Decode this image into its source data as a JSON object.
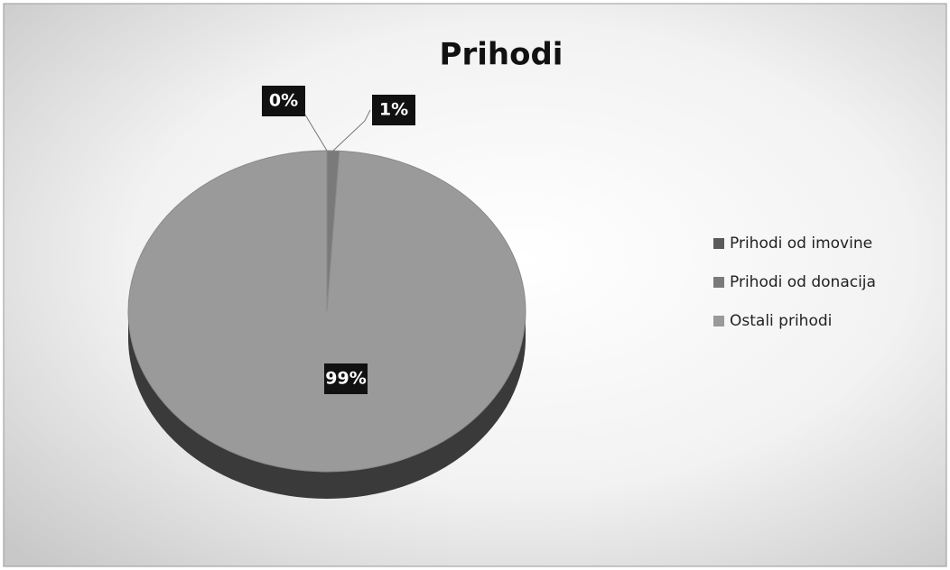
{
  "chart_data": {
    "type": "pie",
    "title": "Prihodi",
    "categories": [
      "Prihodi od imovine",
      "Prihodi od donacija",
      "Ostali prihodi"
    ],
    "values": [
      0,
      1,
      99
    ],
    "value_labels": [
      "0%",
      "1%",
      "99%"
    ],
    "colors": [
      "#5a5a5a",
      "#7a7a7a",
      "#9a9a9a"
    ],
    "legend": "right"
  }
}
